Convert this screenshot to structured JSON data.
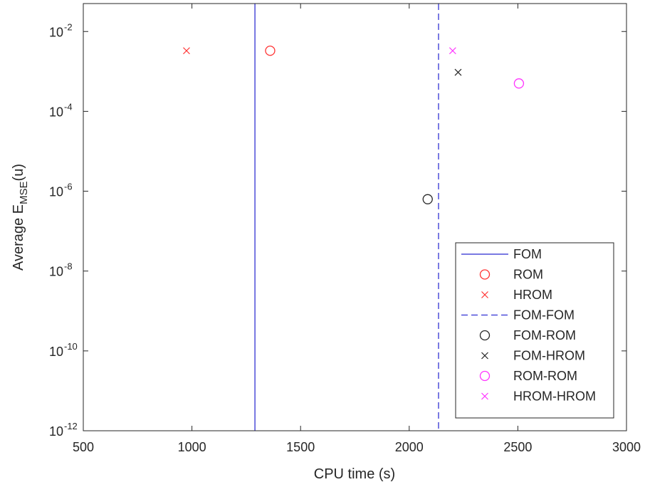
{
  "chart_data": {
    "type": "scatter",
    "xlabel": "CPU time (s)",
    "ylabel": {
      "prefix": "Average E",
      "subscript": "MSE",
      "suffix": "(u)"
    },
    "xlim": [
      500,
      3000
    ],
    "ylim_log10": [
      -12,
      -1.3
    ],
    "yscale": "log",
    "x_ticks": [
      500,
      1000,
      1500,
      2000,
      2500,
      3000
    ],
    "x_tick_labels": [
      "500",
      "1000",
      "1500",
      "2000",
      "2500",
      "3000"
    ],
    "y_tick_exponents": [
      -12,
      -10,
      -8,
      -6,
      -4,
      -2
    ],
    "y_tick_base": "10",
    "y_tick_exponent_labels": [
      "-12",
      "-10",
      "-8",
      "-6",
      "-4",
      "-2"
    ],
    "grid": false,
    "legend_position": "bottom-right",
    "series": [
      {
        "name": "FOM",
        "kind": "vline",
        "x": 1290,
        "style": "solid",
        "color": "#4d4dd9"
      },
      {
        "name": "ROM",
        "kind": "marker",
        "marker": "circle",
        "color": "#ff3333",
        "points": [
          [
            1360,
            0.0033
          ]
        ]
      },
      {
        "name": "HROM",
        "kind": "marker",
        "marker": "x",
        "color": "#ff3333",
        "points": [
          [
            975,
            0.0033
          ]
        ]
      },
      {
        "name": "FOM-FOM",
        "kind": "vline",
        "x": 2135,
        "style": "dashed",
        "color": "#4d4dd9"
      },
      {
        "name": "FOM-ROM",
        "kind": "marker",
        "marker": "circle",
        "color": "#262626",
        "points": [
          [
            2085,
            6.3e-07
          ]
        ]
      },
      {
        "name": "FOM-HROM",
        "kind": "marker",
        "marker": "x",
        "color": "#262626",
        "points": [
          [
            2225,
            0.00095
          ]
        ]
      },
      {
        "name": "ROM-ROM",
        "kind": "marker",
        "marker": "circle",
        "color": "#ff33ff",
        "points": [
          [
            2505,
            0.0005
          ]
        ]
      },
      {
        "name": "HROM-HROM",
        "kind": "marker",
        "marker": "x",
        "color": "#ff33ff",
        "points": [
          [
            2200,
            0.0033
          ]
        ]
      }
    ]
  }
}
